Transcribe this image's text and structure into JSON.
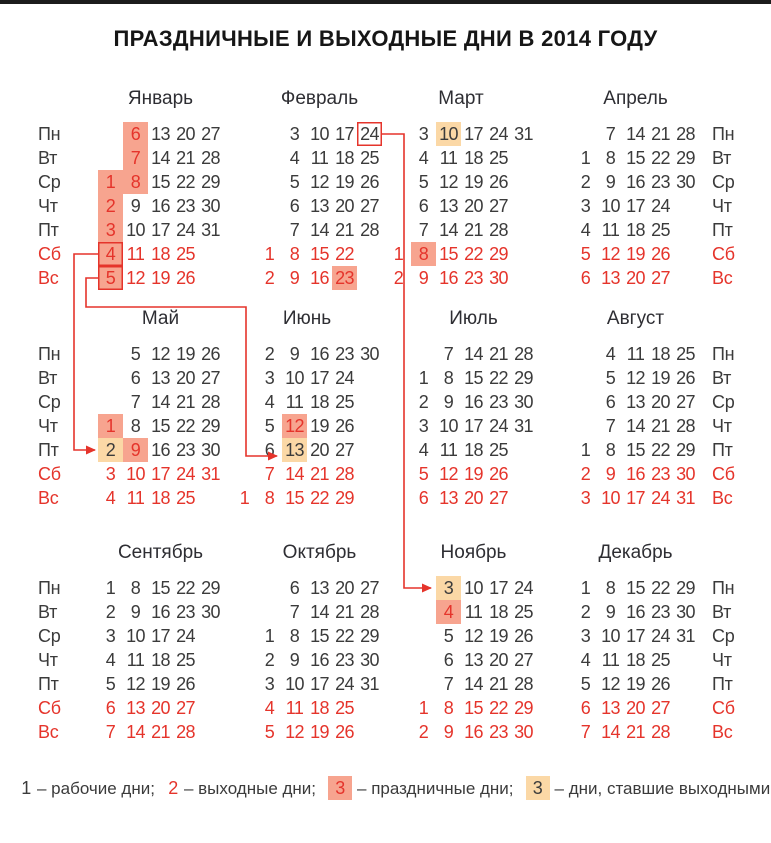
{
  "title": "ПРАЗДНИЧНЫЕ И ВЫХОДНЫЕ ДНИ В 2014 ГОДУ",
  "weekdays": [
    "Пн",
    "Вт",
    "Ср",
    "Чт",
    "Пт",
    "Сб",
    "Вс"
  ],
  "colors": {
    "red": "#e5342b",
    "pink": "#f7a48f",
    "peach": "#fbd8a6",
    "ink": "#3b3b3b"
  },
  "months": [
    {
      "id": "jan",
      "name": "Январь",
      "rows": [
        [
          null,
          6,
          13,
          20,
          27
        ],
        [
          null,
          7,
          14,
          21,
          28
        ],
        [
          1,
          8,
          15,
          22,
          29
        ],
        [
          2,
          9,
          16,
          23,
          30
        ],
        [
          3,
          10,
          17,
          24,
          31
        ],
        [
          4,
          11,
          18,
          25,
          null
        ],
        [
          5,
          12,
          19,
          26,
          null
        ]
      ],
      "pink": [
        1,
        2,
        3,
        4,
        5,
        6,
        7,
        8
      ],
      "peach": [],
      "boxed": [
        4,
        5
      ]
    },
    {
      "id": "feb",
      "name": "Февраль",
      "rows": [
        [
          null,
          3,
          10,
          17,
          24
        ],
        [
          null,
          4,
          11,
          18,
          25
        ],
        [
          null,
          5,
          12,
          19,
          26
        ],
        [
          null,
          6,
          13,
          20,
          27
        ],
        [
          null,
          7,
          14,
          21,
          28
        ],
        [
          1,
          8,
          15,
          22,
          null
        ],
        [
          2,
          9,
          16,
          23,
          null
        ]
      ],
      "pink": [
        23
      ],
      "peach": [],
      "boxed": [
        24
      ]
    },
    {
      "id": "mar",
      "name": "Март",
      "rows": [
        [
          null,
          3,
          10,
          17,
          24,
          31
        ],
        [
          null,
          4,
          11,
          18,
          25,
          null
        ],
        [
          null,
          5,
          12,
          19,
          26,
          null
        ],
        [
          null,
          6,
          13,
          20,
          27,
          null
        ],
        [
          null,
          7,
          14,
          21,
          28,
          null
        ],
        [
          1,
          8,
          15,
          22,
          29,
          null
        ],
        [
          2,
          9,
          16,
          23,
          30,
          null
        ]
      ],
      "pink": [
        8
      ],
      "peach": [
        10
      ],
      "boxed": []
    },
    {
      "id": "apr",
      "name": "Апрель",
      "rows": [
        [
          null,
          7,
          14,
          21,
          28
        ],
        [
          1,
          8,
          15,
          22,
          29
        ],
        [
          2,
          9,
          16,
          23,
          30
        ],
        [
          3,
          10,
          17,
          24,
          null
        ],
        [
          4,
          11,
          18,
          25,
          null
        ],
        [
          5,
          12,
          19,
          26,
          null
        ],
        [
          6,
          13,
          20,
          27,
          null
        ]
      ],
      "pink": [],
      "peach": [],
      "boxed": []
    },
    {
      "id": "may",
      "name": "Май",
      "rows": [
        [
          null,
          5,
          12,
          19,
          26
        ],
        [
          null,
          6,
          13,
          20,
          27
        ],
        [
          null,
          7,
          14,
          21,
          28
        ],
        [
          1,
          8,
          15,
          22,
          29
        ],
        [
          2,
          9,
          16,
          23,
          30
        ],
        [
          3,
          10,
          17,
          24,
          31
        ],
        [
          4,
          11,
          18,
          25,
          null
        ]
      ],
      "pink": [
        1,
        9
      ],
      "peach": [
        2
      ],
      "boxed": []
    },
    {
      "id": "jun",
      "name": "Июнь",
      "rows": [
        [
          null,
          2,
          9,
          16,
          23,
          30
        ],
        [
          null,
          3,
          10,
          17,
          24,
          null
        ],
        [
          null,
          4,
          11,
          18,
          25,
          null
        ],
        [
          null,
          5,
          12,
          19,
          26,
          null
        ],
        [
          null,
          6,
          13,
          20,
          27,
          null
        ],
        [
          null,
          7,
          14,
          21,
          28,
          null
        ],
        [
          1,
          8,
          15,
          22,
          29,
          null
        ]
      ],
      "pink": [
        12
      ],
      "peach": [
        13
      ],
      "boxed": []
    },
    {
      "id": "jul",
      "name": "Июль",
      "rows": [
        [
          null,
          7,
          14,
          21,
          28
        ],
        [
          1,
          8,
          15,
          22,
          29
        ],
        [
          2,
          9,
          16,
          23,
          30
        ],
        [
          3,
          10,
          17,
          24,
          31
        ],
        [
          4,
          11,
          18,
          25,
          null
        ],
        [
          5,
          12,
          19,
          26,
          null
        ],
        [
          6,
          13,
          20,
          27,
          null
        ]
      ],
      "pink": [],
      "peach": [],
      "boxed": []
    },
    {
      "id": "aug",
      "name": "Август",
      "rows": [
        [
          null,
          4,
          11,
          18,
          25
        ],
        [
          null,
          5,
          12,
          19,
          26
        ],
        [
          null,
          6,
          13,
          20,
          27
        ],
        [
          null,
          7,
          14,
          21,
          28
        ],
        [
          1,
          8,
          15,
          22,
          29
        ],
        [
          2,
          9,
          16,
          23,
          30
        ],
        [
          3,
          10,
          17,
          24,
          31
        ]
      ],
      "pink": [],
      "peach": [],
      "boxed": []
    },
    {
      "id": "sep",
      "name": "Сентябрь",
      "rows": [
        [
          1,
          8,
          15,
          22,
          29
        ],
        [
          2,
          9,
          16,
          23,
          30
        ],
        [
          3,
          10,
          17,
          24,
          null
        ],
        [
          4,
          11,
          18,
          25,
          null
        ],
        [
          5,
          12,
          19,
          26,
          null
        ],
        [
          6,
          13,
          20,
          27,
          null
        ],
        [
          7,
          14,
          21,
          28,
          null
        ]
      ],
      "pink": [],
      "peach": [],
      "boxed": []
    },
    {
      "id": "oct",
      "name": "Октябрь",
      "rows": [
        [
          null,
          6,
          13,
          20,
          27
        ],
        [
          null,
          7,
          14,
          21,
          28
        ],
        [
          1,
          8,
          15,
          22,
          29
        ],
        [
          2,
          9,
          16,
          23,
          30
        ],
        [
          3,
          10,
          17,
          24,
          31
        ],
        [
          4,
          11,
          18,
          25,
          null
        ],
        [
          5,
          12,
          19,
          26,
          null
        ]
      ],
      "pink": [],
      "peach": [],
      "boxed": []
    },
    {
      "id": "nov",
      "name": "Ноябрь",
      "rows": [
        [
          null,
          3,
          10,
          17,
          24
        ],
        [
          null,
          4,
          11,
          18,
          25
        ],
        [
          null,
          5,
          12,
          19,
          26
        ],
        [
          null,
          6,
          13,
          20,
          27
        ],
        [
          null,
          7,
          14,
          21,
          28
        ],
        [
          1,
          8,
          15,
          22,
          29
        ],
        [
          2,
          9,
          16,
          23,
          30
        ]
      ],
      "pink": [
        4
      ],
      "peach": [
        3
      ],
      "boxed": []
    },
    {
      "id": "dec",
      "name": "Декабрь",
      "rows": [
        [
          1,
          8,
          15,
          22,
          29
        ],
        [
          2,
          9,
          16,
          23,
          30
        ],
        [
          3,
          10,
          17,
          24,
          31
        ],
        [
          4,
          11,
          18,
          25,
          null
        ],
        [
          5,
          12,
          19,
          26,
          null
        ],
        [
          6,
          13,
          20,
          27,
          null
        ],
        [
          7,
          14,
          21,
          28,
          null
        ]
      ],
      "pink": [],
      "peach": [],
      "boxed": []
    }
  ],
  "transfers": [
    {
      "from_month": "Январь",
      "from_day": 4,
      "to_month": "Май",
      "to_day": 2
    },
    {
      "from_month": "Январь",
      "from_day": 5,
      "to_month": "Июнь",
      "to_day": 13
    },
    {
      "from_month": "Февраль",
      "from_day": 24,
      "to_month": "Ноябрь",
      "to_day": 3
    }
  ],
  "legend": [
    {
      "symbol": "1",
      "type": "workday",
      "label": "– рабочие дни;"
    },
    {
      "symbol": "2",
      "type": "weekend",
      "label": "– выходные дни;"
    },
    {
      "symbol": "3",
      "type": "holiday",
      "label": "– праздничные дни;"
    },
    {
      "symbol": "3",
      "type": "moved",
      "label": "– дни, ставшие выходными"
    }
  ]
}
